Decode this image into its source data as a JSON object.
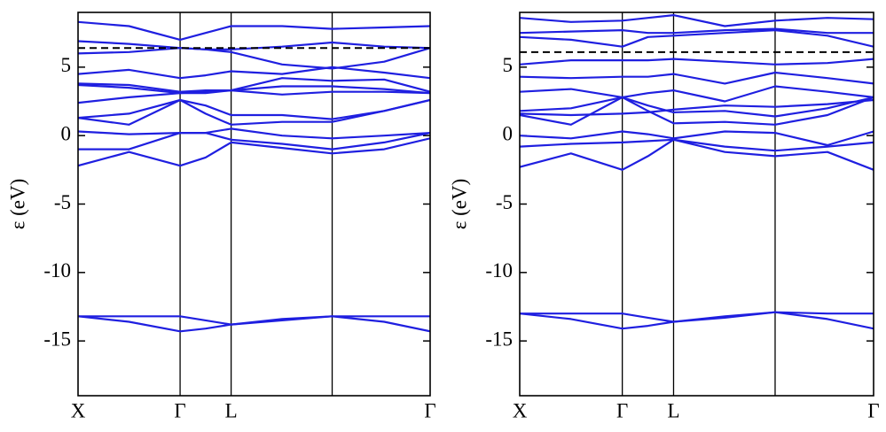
{
  "chart_data": [
    {
      "type": "line",
      "y_label": "ε (eV)",
      "color": "#1f1fe0",
      "x": [
        0,
        0.5,
        1,
        1.25,
        1.5,
        2,
        2.49,
        3,
        3.45
      ],
      "xlim": [
        0,
        3.45
      ],
      "xticks": [
        {
          "value": 0,
          "label": "X"
        },
        {
          "value": 1,
          "label": "Γ"
        },
        {
          "value": 1.5,
          "label": "L"
        },
        {
          "value": 2.49,
          "label": null
        },
        {
          "value": 3.45,
          "label": "Γ"
        }
      ],
      "ylim": [
        -19,
        9
      ],
      "yticks": [
        -15,
        -10,
        -5,
        0,
        5
      ],
      "fermi_level": 6.4,
      "series": [
        {
          "values": [
            -13.2,
            -13.6,
            -14.3,
            -14.1,
            -13.8,
            -13.4,
            -13.2,
            -13.6,
            -14.3
          ]
        },
        {
          "values": [
            -13.2,
            -13.2,
            -13.2,
            -13.5,
            -13.8,
            -13.5,
            -13.2,
            -13.2,
            -13.2
          ]
        },
        {
          "values": [
            -2.2,
            -1.2,
            -2.2,
            -1.6,
            -0.5,
            -0.9,
            -1.3,
            -1.0,
            -0.2
          ]
        },
        {
          "values": [
            -1.0,
            -1.0,
            0.2,
            0.2,
            -0.3,
            -0.6,
            -1.0,
            -0.5,
            0.2
          ]
        },
        {
          "values": [
            0.3,
            0.1,
            0.2,
            0.2,
            0.5,
            0.0,
            -0.2,
            0.0,
            0.2
          ]
        },
        {
          "values": [
            1.3,
            0.8,
            2.6,
            1.6,
            0.8,
            1.0,
            1.0,
            1.8,
            2.6
          ]
        },
        {
          "values": [
            1.3,
            1.6,
            2.6,
            2.2,
            1.5,
            1.5,
            1.2,
            1.8,
            2.6
          ]
        },
        {
          "values": [
            2.4,
            2.8,
            3.1,
            3.2,
            3.3,
            3.0,
            3.2,
            3.2,
            3.1
          ]
        },
        {
          "values": [
            3.7,
            3.5,
            3.1,
            3.1,
            3.3,
            3.6,
            3.6,
            3.4,
            3.1
          ]
        },
        {
          "values": [
            3.8,
            3.7,
            3.2,
            3.3,
            3.3,
            4.2,
            4.0,
            4.1,
            3.2
          ]
        },
        {
          "values": [
            4.5,
            4.8,
            4.2,
            4.4,
            4.7,
            4.5,
            5.0,
            4.6,
            4.2
          ]
        },
        {
          "values": [
            6.0,
            6.1,
            6.4,
            6.3,
            6.1,
            5.2,
            4.9,
            5.4,
            6.4
          ]
        },
        {
          "values": [
            6.9,
            6.7,
            6.4,
            6.3,
            6.3,
            6.5,
            6.8,
            6.5,
            6.4
          ]
        },
        {
          "values": [
            8.3,
            8.0,
            7.0,
            7.5,
            8.0,
            8.0,
            7.8,
            7.9,
            8.0
          ]
        }
      ]
    },
    {
      "type": "line",
      "y_label": "ε (eV)",
      "color": "#1f1fe0",
      "x": [
        0,
        0.5,
        1,
        1.25,
        1.5,
        2,
        2.49,
        3,
        3.45
      ],
      "xlim": [
        0,
        3.45
      ],
      "xticks": [
        {
          "value": 0,
          "label": "X"
        },
        {
          "value": 1,
          "label": "Γ"
        },
        {
          "value": 1.5,
          "label": "L"
        },
        {
          "value": 2.49,
          "label": null
        },
        {
          "value": 3.45,
          "label": "Γ"
        }
      ],
      "ylim": [
        -19,
        9
      ],
      "yticks": [
        -15,
        -10,
        -5,
        0,
        5
      ],
      "fermi_level": 6.1,
      "series": [
        {
          "values": [
            -13.0,
            -13.4,
            -14.1,
            -13.9,
            -13.6,
            -13.2,
            -12.9,
            -13.4,
            -14.1
          ]
        },
        {
          "values": [
            -13.0,
            -13.0,
            -13.0,
            -13.3,
            -13.6,
            -13.3,
            -12.9,
            -13.0,
            -13.0
          ]
        },
        {
          "values": [
            -2.3,
            -1.3,
            -2.5,
            -1.5,
            -0.3,
            -1.2,
            -1.5,
            -1.2,
            -2.5
          ]
        },
        {
          "values": [
            -0.8,
            -0.6,
            -0.5,
            -0.4,
            -0.3,
            -0.8,
            -1.1,
            -0.8,
            -0.5
          ]
        },
        {
          "values": [
            0.0,
            -0.2,
            0.3,
            0.1,
            -0.2,
            0.3,
            0.2,
            -0.7,
            0.3
          ]
        },
        {
          "values": [
            1.5,
            0.8,
            2.8,
            1.8,
            0.9,
            1.0,
            0.8,
            1.5,
            2.8
          ]
        },
        {
          "values": [
            1.8,
            2.0,
            2.8,
            2.2,
            1.7,
            1.8,
            1.4,
            2.0,
            2.8
          ]
        },
        {
          "values": [
            1.6,
            1.5,
            1.6,
            1.7,
            1.9,
            2.2,
            2.1,
            2.3,
            2.6
          ]
        },
        {
          "values": [
            3.2,
            3.4,
            2.8,
            3.1,
            3.3,
            2.5,
            3.6,
            3.2,
            2.8
          ]
        },
        {
          "values": [
            4.3,
            4.2,
            4.3,
            4.3,
            4.5,
            3.8,
            4.6,
            4.2,
            3.8
          ]
        },
        {
          "values": [
            5.2,
            5.5,
            5.5,
            5.5,
            5.6,
            5.4,
            5.2,
            5.3,
            5.6
          ]
        },
        {
          "values": [
            7.2,
            7.0,
            6.5,
            7.2,
            7.3,
            7.5,
            7.7,
            7.3,
            6.5
          ]
        },
        {
          "values": [
            7.5,
            7.6,
            7.7,
            7.5,
            7.5,
            7.7,
            7.8,
            7.5,
            7.5
          ]
        },
        {
          "values": [
            8.6,
            8.3,
            8.4,
            8.6,
            8.8,
            8.0,
            8.4,
            8.6,
            8.5
          ]
        }
      ]
    }
  ]
}
